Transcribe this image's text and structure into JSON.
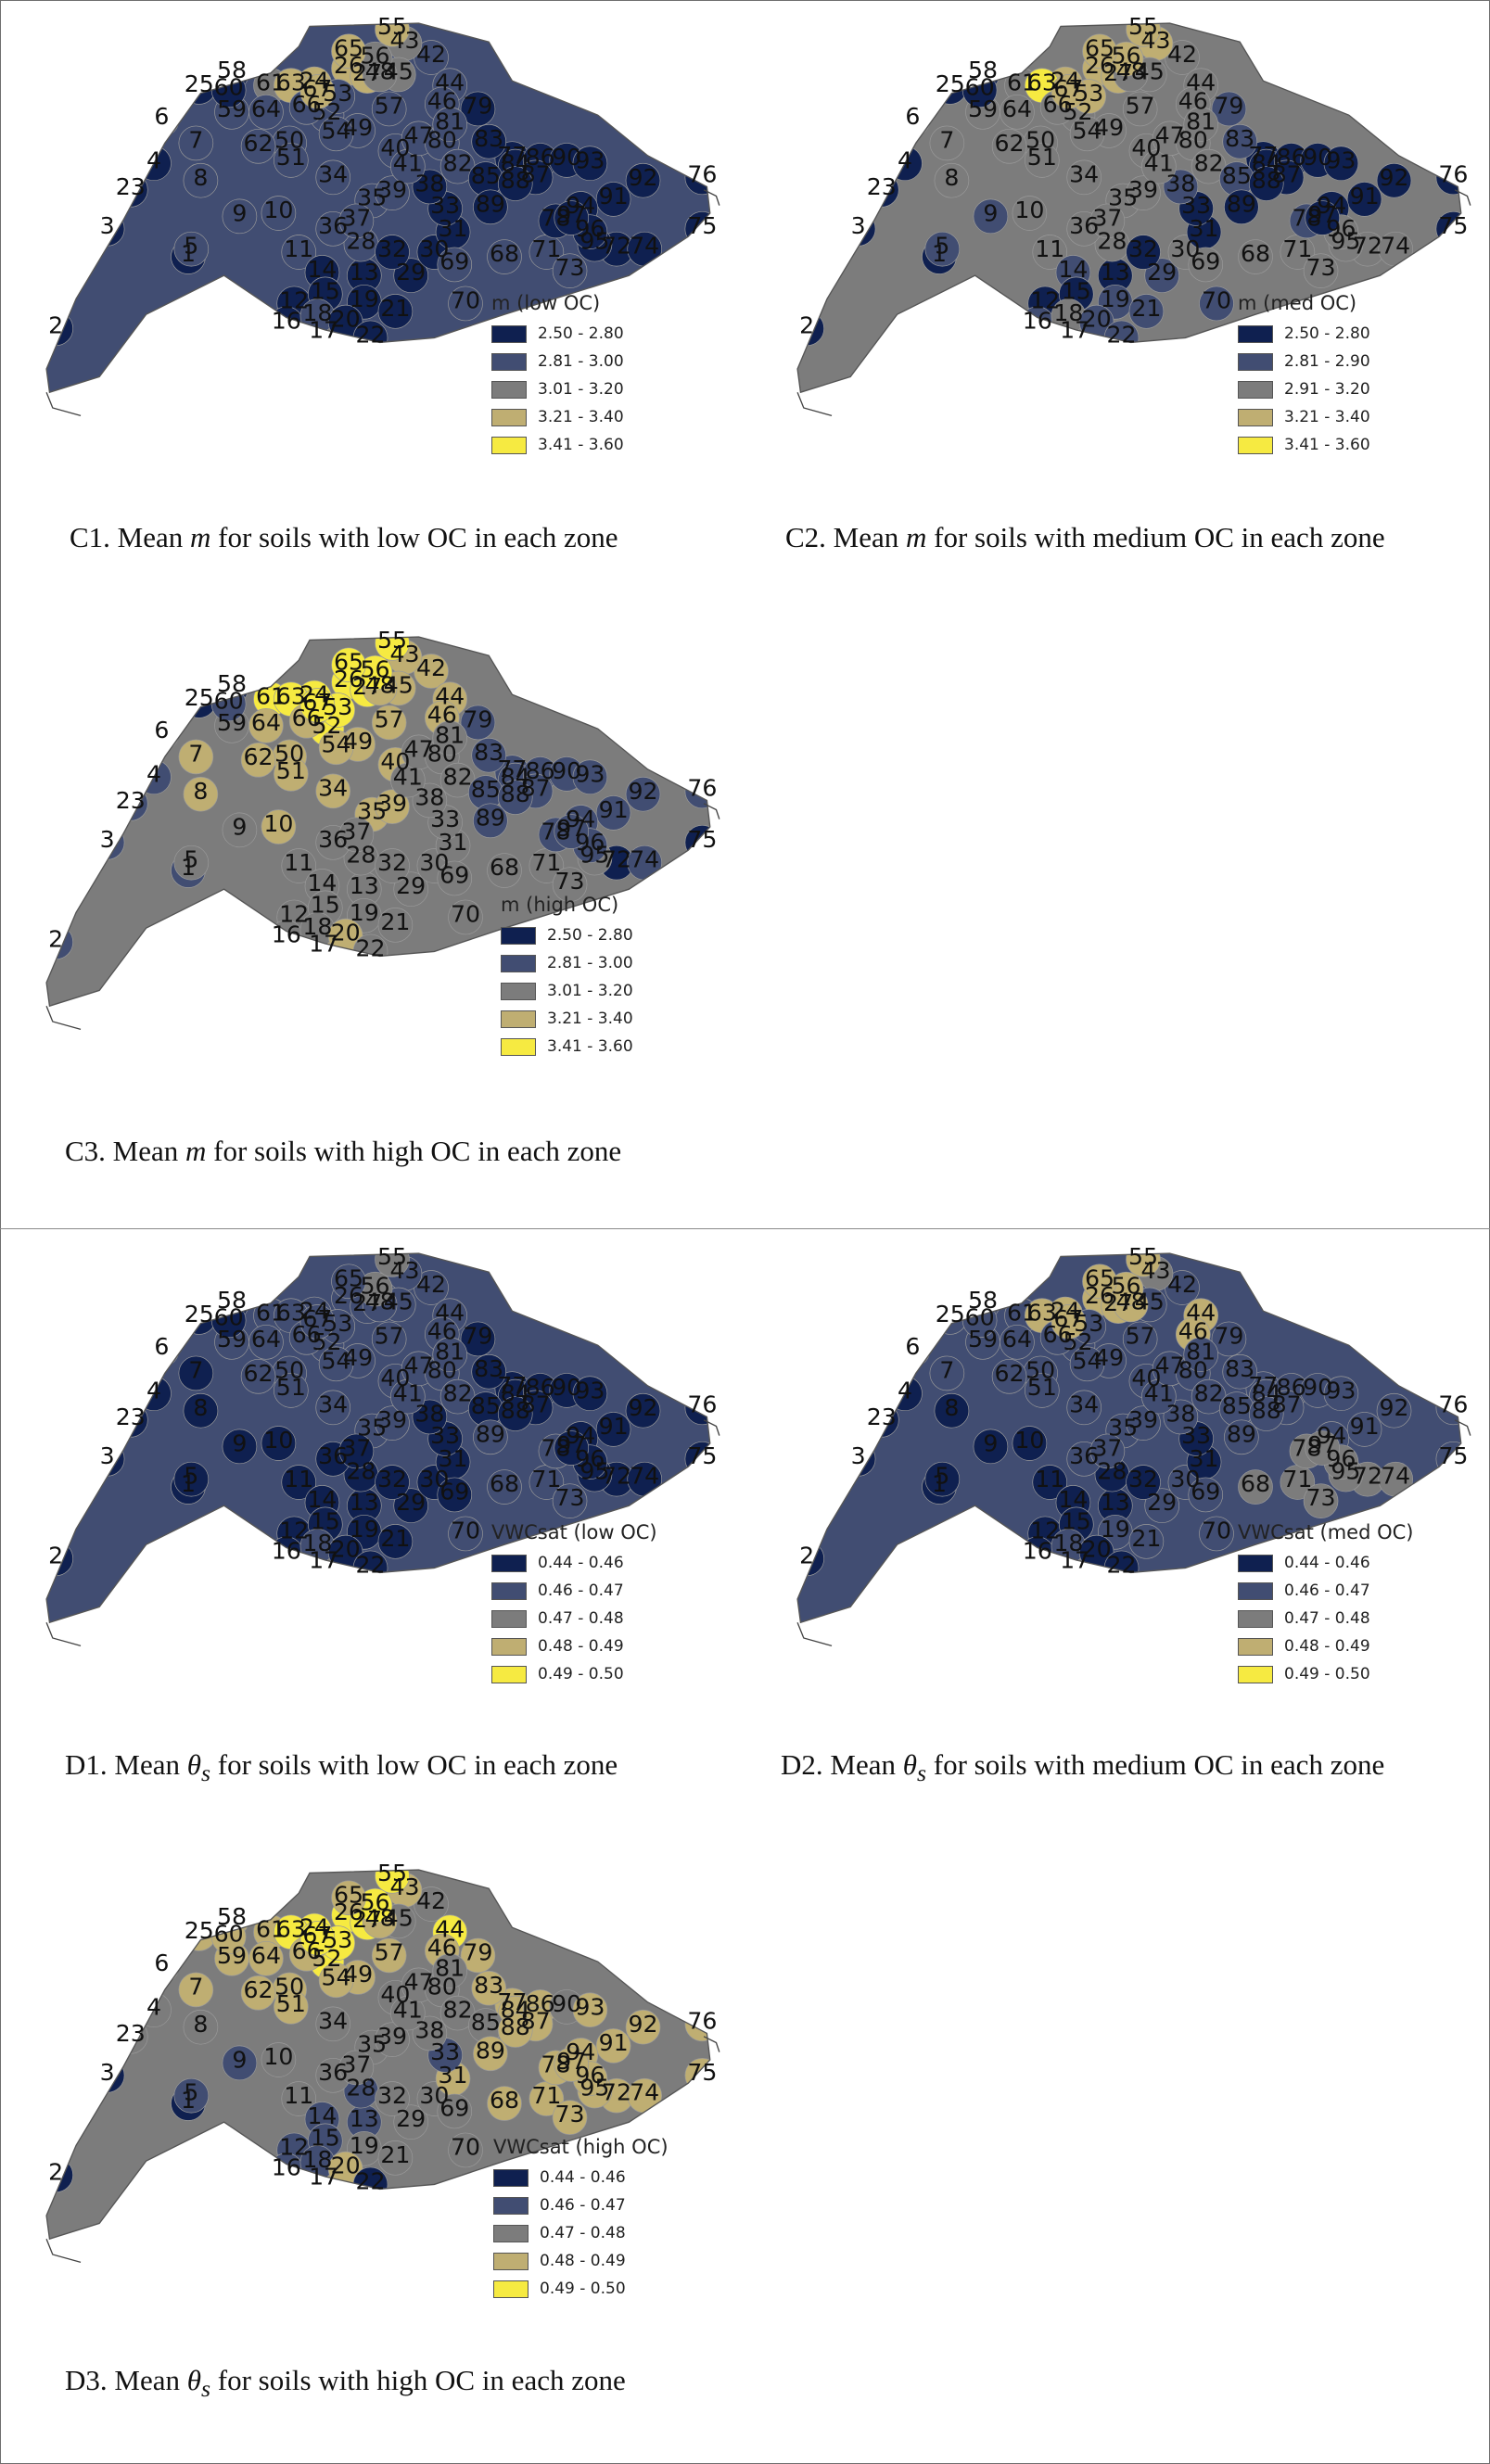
{
  "palette": {
    "c1": "#0f2050",
    "c2": "#414d72",
    "c3": "#7c7c7c",
    "c4": "#bfae72",
    "c5": "#f6ea41"
  },
  "panels": [
    {
      "id": "C1",
      "legend_title": "m (low OC)",
      "legend_ranges": [
        "2.50 - 2.80",
        "2.81 - 3.00",
        "3.01 - 3.20",
        "3.21 - 3.40",
        "3.41 - 3.60"
      ],
      "caption_prefix": "C1. Mean",
      "caption_symbol": "m",
      "caption_suffix": "for soils with low OC in each zone",
      "default_class": 2,
      "overrides": {
        "1": 1,
        "2": 1,
        "3": 1,
        "4": 1,
        "5": 2,
        "6": 2,
        "7": 2,
        "8": 2,
        "9": 2,
        "10": 2,
        "11": 2,
        "12": 1,
        "13": 1,
        "14": 1,
        "15": 1,
        "16": 1,
        "17": 3,
        "18": 2,
        "19": 1,
        "20": 1,
        "21": 1,
        "22": 1,
        "23": 1,
        "24": 4,
        "25": 1,
        "26": 4,
        "27": 4,
        "29": 1,
        "30": 1,
        "31": 1,
        "32": 1,
        "33": 1,
        "38": 1,
        "40": 2,
        "43": 3,
        "45": 3,
        "48": 3,
        "55": 4,
        "56": 3,
        "58": 1,
        "60": 1,
        "61": 3,
        "63": 4,
        "65": 4,
        "67": 4,
        "69": 2,
        "70": 2,
        "72": 1,
        "73": 2,
        "74": 1,
        "75": 1,
        "76": 1,
        "77": 1,
        "78": 1,
        "79": 1,
        "83": 1,
        "84": 1,
        "85": 1,
        "86": 1,
        "87": 1,
        "88": 1,
        "89": 1,
        "90": 1,
        "91": 1,
        "92": 1,
        "93": 1,
        "94": 1,
        "95": 1,
        "96": 1,
        "97": 1
      }
    },
    {
      "id": "C2",
      "legend_title": "m (med OC)",
      "legend_ranges": [
        "2.50 - 2.80",
        "2.81 - 2.90",
        "2.91 - 3.20",
        "3.21 - 3.40",
        "3.41 - 3.60"
      ],
      "caption_prefix": "C2. Mean",
      "caption_symbol": "m",
      "caption_suffix": "for soils with medium OC in each zone",
      "default_class": 3,
      "overrides": {
        "1": 1,
        "2": 1,
        "3": 1,
        "4": 1,
        "5": 2,
        "9": 2,
        "12": 1,
        "13": 1,
        "14": 2,
        "15": 1,
        "16": 2,
        "17": 3,
        "18": 3,
        "19": 2,
        "20": 2,
        "21": 2,
        "22": 2,
        "23": 1,
        "24": 4,
        "25": 1,
        "26": 4,
        "27": 4,
        "29": 2,
        "31": 1,
        "32": 1,
        "33": 1,
        "38": 2,
        "43": 4,
        "45": 3,
        "53": 4,
        "55": 4,
        "56": 4,
        "58": 1,
        "60": 1,
        "63": 5,
        "65": 4,
        "67": 4,
        "70": 2,
        "75": 1,
        "76": 1,
        "77": 1,
        "78": 2,
        "79": 2,
        "83": 2,
        "84": 1,
        "85": 2,
        "86": 1,
        "87": 1,
        "88": 1,
        "89": 1,
        "90": 1,
        "91": 1,
        "92": 1,
        "93": 1,
        "94": 1,
        "97": 1
      }
    },
    {
      "id": "C3",
      "legend_title": "m (high OC)",
      "legend_ranges": [
        "2.50 - 2.80",
        "2.81 - 3.00",
        "3.01 - 3.20",
        "3.21 - 3.40",
        "3.41 - 3.60"
      ],
      "caption_prefix": "C3. Mean",
      "caption_symbol": "m",
      "caption_suffix": "for soils with high OC in each zone",
      "default_class": 3,
      "overrides": {
        "1": 2,
        "2": 2,
        "3": 2,
        "4": 2,
        "6": 3,
        "7": 4,
        "8": 4,
        "10": 4,
        "17": 4,
        "20": 4,
        "23": 2,
        "24": 5,
        "25": 1,
        "26": 5,
        "27": 5,
        "34": 4,
        "35": 4,
        "39": 4,
        "40": 4,
        "42": 4,
        "43": 4,
        "44": 4,
        "45": 4,
        "46": 4,
        "48": 4,
        "49": 4,
        "50": 4,
        "51": 4,
        "52": 5,
        "53": 5,
        "54": 4,
        "55": 5,
        "56": 5,
        "57": 4,
        "58": 1,
        "60": 2,
        "61": 5,
        "62": 4,
        "63": 5,
        "64": 4,
        "65": 5,
        "66": 4,
        "67": 5,
        "72": 1,
        "74": 2,
        "75": 1,
        "76": 2,
        "77": 2,
        "78": 2,
        "79": 2,
        "83": 2,
        "84": 2,
        "85": 2,
        "86": 2,
        "87": 2,
        "88": 2,
        "89": 2,
        "90": 2,
        "91": 2,
        "92": 2,
        "93": 2,
        "94": 2,
        "96": 2,
        "97": 2
      }
    },
    {
      "id": "D1",
      "legend_title": "VWCsat (low OC)",
      "legend_ranges": [
        "0.44 - 0.46",
        "0.46 - 0.47",
        "0.47 - 0.48",
        "0.48 - 0.49",
        "0.49 - 0.50"
      ],
      "caption_prefix": "D1. Mean",
      "caption_symbol": "θ",
      "caption_sub": "s",
      "caption_suffix": "for soils with low OC in each zone",
      "default_class": 2,
      "overrides": {
        "1": 1,
        "2": 1,
        "3": 1,
        "4": 1,
        "5": 1,
        "6": 1,
        "7": 1,
        "8": 1,
        "9": 1,
        "10": 1,
        "11": 1,
        "12": 1,
        "13": 1,
        "14": 1,
        "15": 1,
        "16": 1,
        "17": 3,
        "19": 1,
        "20": 1,
        "21": 1,
        "22": 1,
        "23": 1,
        "25": 1,
        "28": 1,
        "29": 1,
        "30": 1,
        "31": 1,
        "32": 1,
        "33": 1,
        "36": 1,
        "37": 1,
        "38": 1,
        "55": 3,
        "56": 3,
        "58": 1,
        "60": 1,
        "69": 1,
        "72": 1,
        "73": 2,
        "74": 1,
        "75": 1,
        "76": 1,
        "77": 1,
        "79": 1,
        "83": 1,
        "84": 1,
        "85": 1,
        "86": 1,
        "87": 1,
        "88": 1,
        "90": 1,
        "91": 1,
        "92": 1,
        "93": 1,
        "94": 1,
        "95": 1,
        "96": 1,
        "97": 1
      }
    },
    {
      "id": "D2",
      "legend_title": "VWCsat (med OC)",
      "legend_ranges": [
        "0.44 - 0.46",
        "0.46 - 0.47",
        "0.47 - 0.48",
        "0.48 - 0.49",
        "0.49 - 0.50"
      ],
      "caption_prefix": "D2. Mean",
      "caption_symbol": "θ",
      "caption_sub": "s",
      "caption_suffix": "for soils with medium OC in each zone",
      "default_class": 2,
      "overrides": {
        "1": 1,
        "2": 1,
        "3": 1,
        "4": 1,
        "5": 1,
        "8": 1,
        "9": 1,
        "10": 1,
        "11": 1,
        "12": 1,
        "13": 1,
        "14": 1,
        "15": 1,
        "16": 1,
        "17": 3,
        "20": 1,
        "22": 1,
        "23": 1,
        "24": 4,
        "26": 4,
        "27": 4,
        "28": 1,
        "31": 1,
        "32": 1,
        "33": 1,
        "43": 3,
        "44": 4,
        "46": 4,
        "48": 4,
        "55": 4,
        "56": 4,
        "63": 4,
        "65": 4,
        "67": 4,
        "68": 3,
        "71": 3,
        "72": 3,
        "73": 3,
        "74": 3,
        "78": 3,
        "95": 3,
        "96": 3,
        "97": 3
      }
    },
    {
      "id": "D3",
      "legend_title": "VWCsat (high OC)",
      "legend_ranges": [
        "0.44 - 0.46",
        "0.46 - 0.47",
        "0.47 - 0.48",
        "0.48 - 0.49",
        "0.49 - 0.50"
      ],
      "caption_prefix": "D3. Mean",
      "caption_symbol": "θ",
      "caption_sub": "s",
      "caption_suffix": "for soils with high OC in each zone",
      "default_class": 3,
      "overrides": {
        "1": 1,
        "2": 1,
        "3": 1,
        "4": 3,
        "5": 2,
        "6": 4,
        "7": 4,
        "8": 3,
        "9": 2,
        "10": 3,
        "11": 3,
        "12": 2,
        "13": 2,
        "14": 2,
        "15": 2,
        "16": 2,
        "17": 4,
        "18": 2,
        "19": 3,
        "20": 4,
        "22": 1,
        "23": 3,
        "24": 5,
        "25": 4,
        "26": 5,
        "27": 5,
        "28": 2,
        "31": 4,
        "33": 2,
        "34": 3,
        "42": 3,
        "43": 4,
        "44": 5,
        "46": 4,
        "48": 4,
        "49": 4,
        "50": 4,
        "51": 4,
        "52": 5,
        "53": 5,
        "54": 4,
        "55": 5,
        "56": 5,
        "57": 4,
        "58": 4,
        "59": 4,
        "60": 4,
        "61": 4,
        "62": 4,
        "63": 5,
        "64": 4,
        "65": 4,
        "66": 4,
        "67": 5,
        "68": 4,
        "71": 4,
        "72": 4,
        "73": 4,
        "74": 4,
        "75": 4,
        "76": 4,
        "77": 4,
        "78": 4,
        "79": 4,
        "83": 4,
        "84": 4,
        "86": 4,
        "87": 4,
        "88": 4,
        "89": 4,
        "90": 3,
        "91": 4,
        "92": 4,
        "93": 4,
        "94": 4,
        "95": 4,
        "96": 4,
        "97": 4
      }
    }
  ]
}
